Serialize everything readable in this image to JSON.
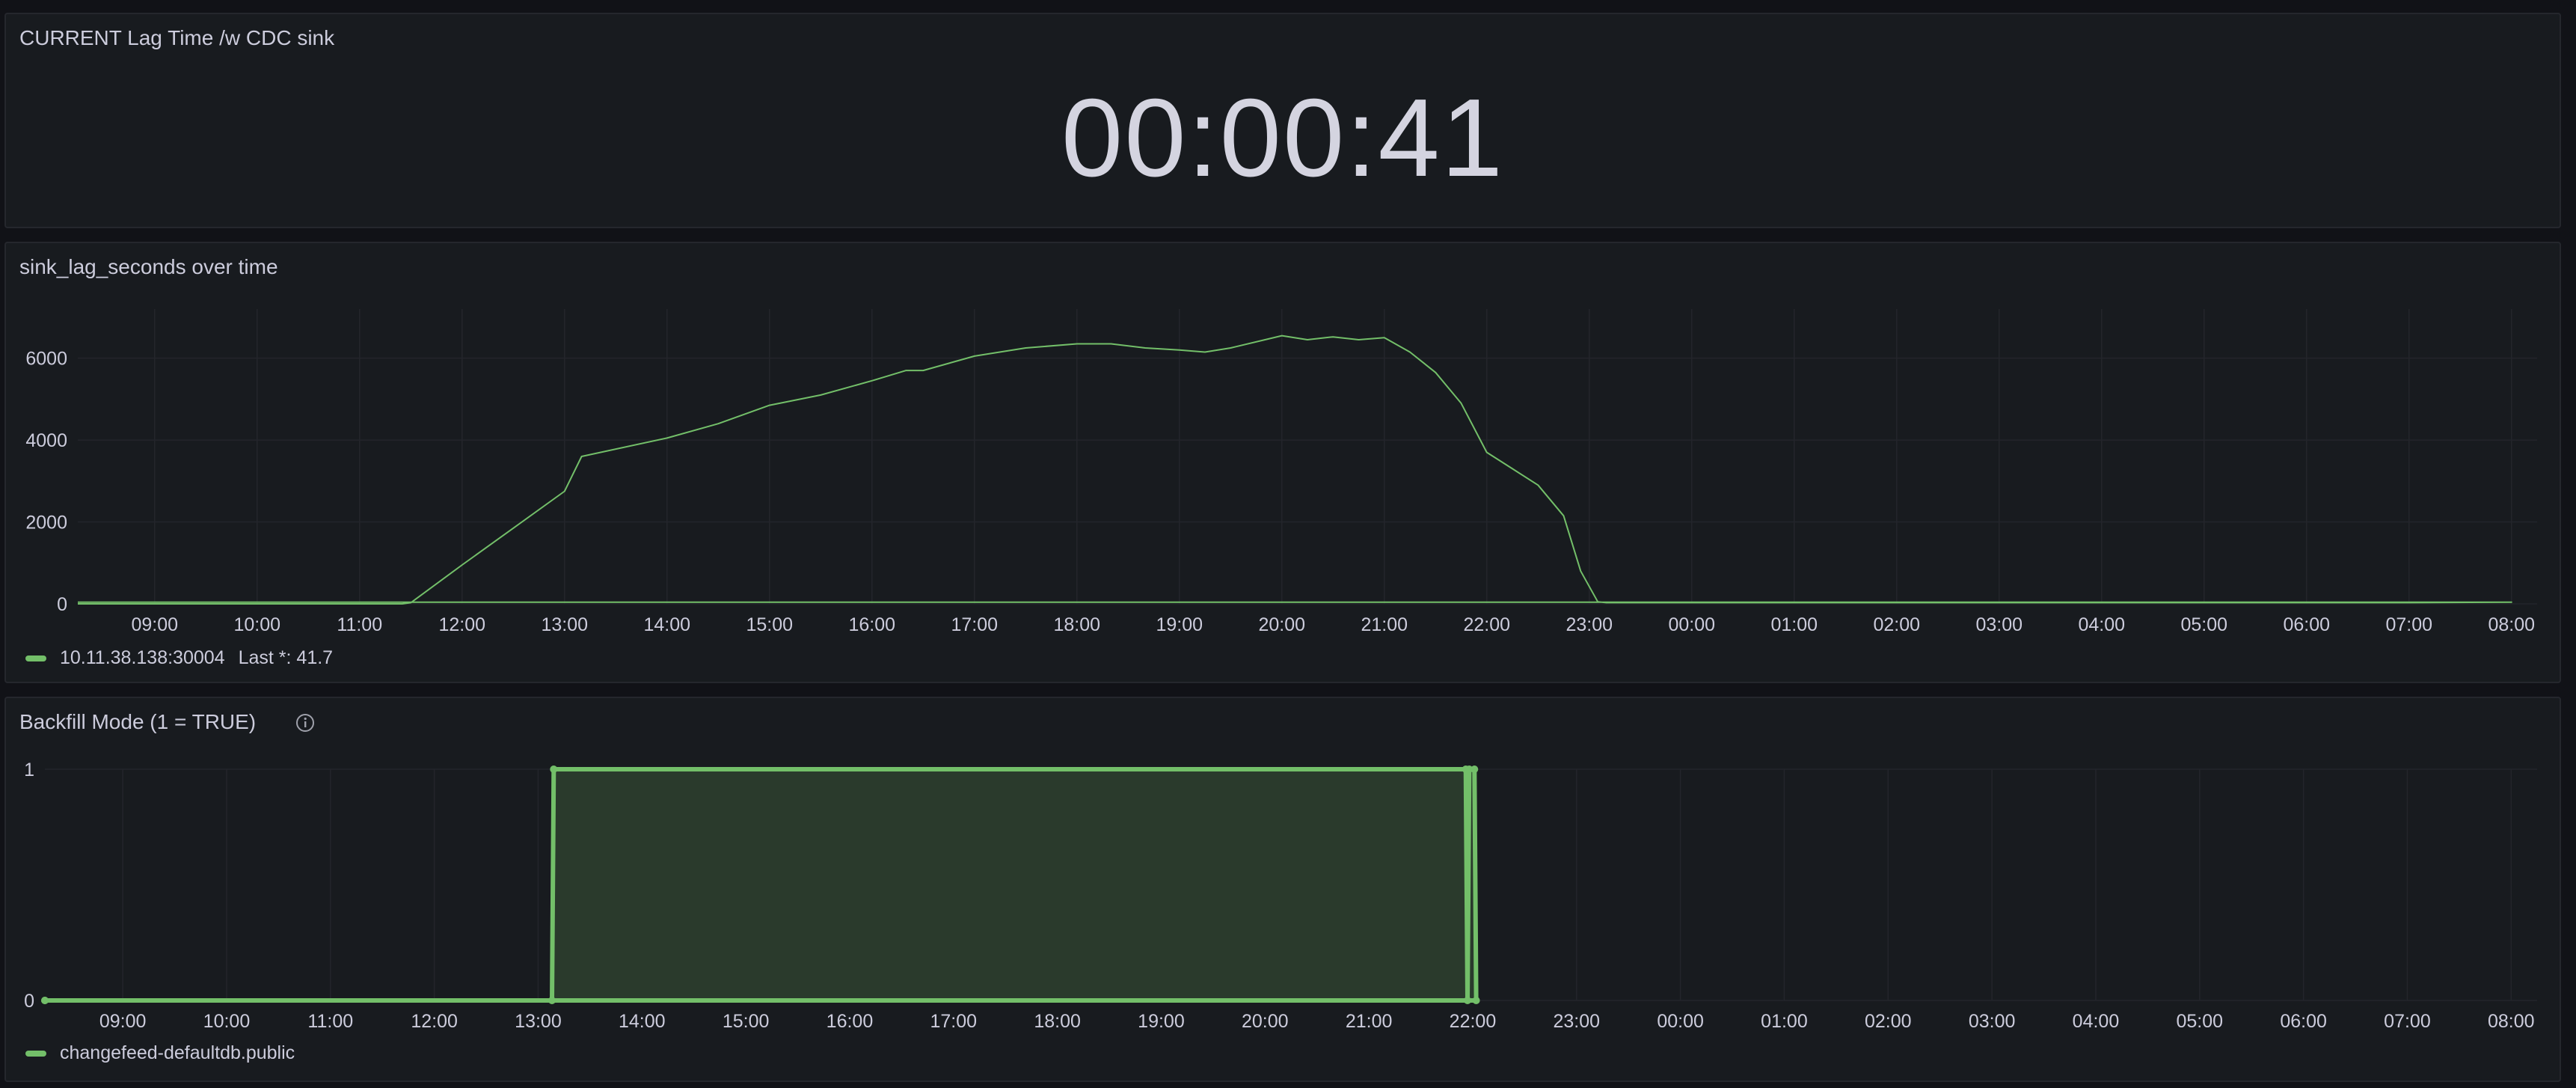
{
  "colors": {
    "series": "#73bf69",
    "fill": "#2a3a2c",
    "grid": "#23252b",
    "background": "#181b1f"
  },
  "stat_panel": {
    "title": "CURRENT Lag Time /w CDC sink",
    "value": "00:00:41"
  },
  "lag_panel": {
    "title": "sink_lag_seconds over time",
    "legend": {
      "series_name": "10.11.38.138:30004",
      "last_value": "Last *: 41.7"
    }
  },
  "backfill_panel": {
    "title": "Backfill Mode (1 = TRUE)",
    "info_icon": "info-circle-icon",
    "legend": {
      "series_name": "changefeed-defaultdb.public"
    }
  },
  "chart_data": [
    {
      "type": "line",
      "title": "sink_lag_seconds over time",
      "xlabel": "",
      "ylabel": "",
      "x_ticks": [
        "09:00",
        "10:00",
        "11:00",
        "12:00",
        "13:00",
        "14:00",
        "15:00",
        "16:00",
        "17:00",
        "18:00",
        "19:00",
        "20:00",
        "21:00",
        "22:00",
        "23:00",
        "00:00",
        "01:00",
        "02:00",
        "03:00",
        "04:00",
        "05:00",
        "06:00",
        "07:00",
        "08:00"
      ],
      "y_ticks": [
        0,
        2000,
        4000,
        6000
      ],
      "ylim": [
        0,
        7200
      ],
      "xlim": [
        "08:15",
        "08:15+1d"
      ],
      "series": [
        {
          "name": "10.11.38.138:30004",
          "x": [
            "08:15",
            "11:00",
            "11:25",
            "11:30",
            "12:00",
            "12:30",
            "13:00",
            "13:10",
            "14:00",
            "14:30",
            "15:00",
            "15:30",
            "16:00",
            "16:20",
            "16:30",
            "17:00",
            "17:30",
            "18:00",
            "18:20",
            "18:40",
            "19:00",
            "19:15",
            "19:30",
            "20:00",
            "20:15",
            "20:30",
            "20:45",
            "21:00",
            "21:15",
            "21:30",
            "21:45",
            "22:00",
            "22:15",
            "22:30",
            "22:45",
            "22:55",
            "23:05",
            "23:10",
            "00:00",
            "01:00",
            "02:00",
            "03:00",
            "04:00",
            "05:00",
            "06:00",
            "07:00",
            "08:00",
            "08:15"
          ],
          "values": [
            0,
            0,
            0,
            30,
            950,
            1850,
            2750,
            3600,
            4050,
            4400,
            4850,
            5100,
            5450,
            5700,
            5700,
            6050,
            6250,
            6350,
            6350,
            6250,
            6200,
            6150,
            6250,
            6550,
            6450,
            6520,
            6450,
            6500,
            6150,
            5650,
            4900,
            3700,
            3300,
            2900,
            2150,
            800,
            50,
            30,
            30,
            30,
            30,
            30,
            30,
            30,
            30,
            30,
            40,
            41.7
          ]
        }
      ]
    },
    {
      "type": "area",
      "title": "Backfill Mode (1 = TRUE)",
      "xlabel": "",
      "ylabel": "",
      "x_ticks": [
        "09:00",
        "10:00",
        "11:00",
        "12:00",
        "13:00",
        "14:00",
        "15:00",
        "16:00",
        "17:00",
        "18:00",
        "19:00",
        "20:00",
        "21:00",
        "22:00",
        "23:00",
        "00:00",
        "01:00",
        "02:00",
        "03:00",
        "04:00",
        "05:00",
        "06:00",
        "07:00",
        "08:00"
      ],
      "y_ticks": [
        0,
        1
      ],
      "ylim": [
        0,
        1
      ],
      "xlim": [
        "08:15",
        "08:15+1d"
      ],
      "series": [
        {
          "name": "changefeed-defaultdb.public",
          "x": [
            "08:15",
            "13:08",
            "13:09",
            "21:56",
            "21:57",
            "21:58",
            "22:01",
            "22:02",
            "08:15"
          ],
          "values": [
            0,
            0,
            1,
            1,
            0,
            1,
            1,
            0,
            0
          ]
        }
      ]
    }
  ]
}
